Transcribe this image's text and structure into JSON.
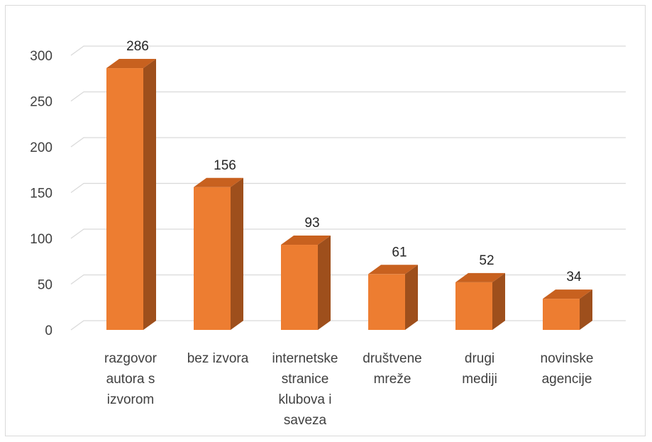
{
  "chart_data": {
    "type": "bar",
    "style": "3d-column",
    "categories": [
      [
        "razgovor",
        "autora s",
        "izvorom"
      ],
      [
        "bez izvora"
      ],
      [
        "internetske",
        "stranice",
        "klubova i",
        "saveza"
      ],
      [
        "društvene",
        "mreže"
      ],
      [
        "drugi",
        "mediji"
      ],
      [
        "novinske",
        "agencije"
      ]
    ],
    "values": [
      286,
      156,
      93,
      61,
      52,
      34
    ],
    "ylim": [
      0,
      300
    ],
    "yticks": [
      0,
      50,
      100,
      150,
      200,
      250,
      300
    ],
    "grid": true,
    "legend": "none",
    "colors": {
      "bar_front": "#ed7d31",
      "bar_side": "#9e4f1c",
      "bar_top": "#c8611f",
      "grid": "#d9d9d9",
      "axis_text": "#404040"
    }
  }
}
